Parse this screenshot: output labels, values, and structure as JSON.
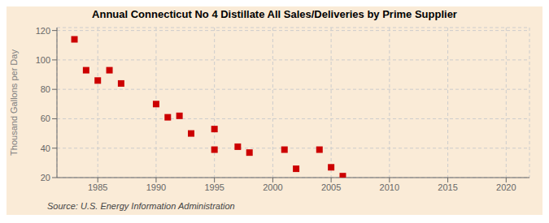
{
  "chart_data": {
    "type": "scatter",
    "title": "Annual Connecticut No 4 Distillate All Sales/Deliveries by Prime Supplier",
    "ylabel": "Thousand Gallons per Day",
    "annotations": [
      "Source: U.S. Energy Information Administration"
    ],
    "x": [
      1983,
      1984,
      1985,
      1986,
      1987,
      1990,
      1991,
      1992,
      1993,
      1995,
      1995,
      1997,
      1998,
      2001,
      2002,
      2004,
      2005,
      2006
    ],
    "values": [
      114,
      93,
      86,
      93,
      84,
      70,
      61,
      62,
      50,
      39,
      53,
      41,
      37,
      39,
      26,
      39,
      27,
      21
    ],
    "color": "#cc0000",
    "marker": "square",
    "xlim": [
      1981.5,
      2022
    ],
    "ylim": [
      20,
      122
    ],
    "xticks": [
      1985,
      1990,
      1995,
      2000,
      2005,
      2010,
      2015,
      2020
    ],
    "yticks": [
      20,
      40,
      60,
      80,
      100,
      120
    ],
    "grid": true
  }
}
